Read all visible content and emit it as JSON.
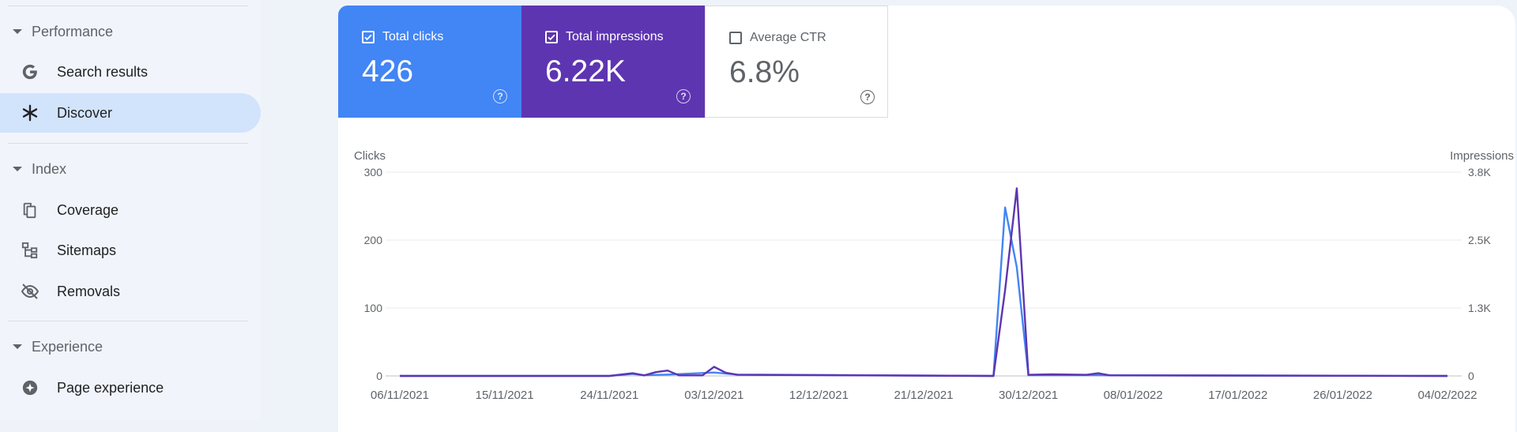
{
  "sidebar": {
    "sections": [
      {
        "title": "Performance",
        "items": [
          {
            "label": "Search results",
            "icon": "google-g-icon"
          },
          {
            "label": "Discover",
            "icon": "asterisk-icon",
            "active": true
          }
        ]
      },
      {
        "title": "Index",
        "items": [
          {
            "label": "Coverage",
            "icon": "copy-pages-icon"
          },
          {
            "label": "Sitemaps",
            "icon": "sitemap-icon"
          },
          {
            "label": "Removals",
            "icon": "eye-off-icon"
          }
        ]
      },
      {
        "title": "Experience",
        "items": [
          {
            "label": "Page experience",
            "icon": "plus-circle-icon"
          }
        ]
      }
    ]
  },
  "metrics": {
    "clicks": {
      "label": "Total clicks",
      "value": "426",
      "checked": true,
      "color": "#4285f4"
    },
    "impressions": {
      "label": "Total impressions",
      "value": "6.22K",
      "checked": true,
      "color": "#5e35b1"
    },
    "ctr": {
      "label": "Average CTR",
      "value": "6.8%",
      "checked": false
    }
  },
  "chart_data": {
    "type": "line",
    "left_axis_label": "Clicks",
    "right_axis_label": "Impressions",
    "left_ticks": [
      "0",
      "100",
      "200",
      "300"
    ],
    "right_ticks": [
      "0",
      "1.3K",
      "2.5K",
      "3.8K"
    ],
    "ylim_left": [
      0,
      300
    ],
    "ylim_right": [
      0,
      3800
    ],
    "x_tick_labels": [
      "06/11/2021",
      "15/11/2021",
      "24/11/2021",
      "03/12/2021",
      "12/12/2021",
      "21/12/2021",
      "30/12/2021",
      "08/01/2022",
      "17/01/2022",
      "26/01/2022",
      "04/02/2022"
    ],
    "series": [
      {
        "name": "Total clicks",
        "color": "#4285f4",
        "points": [
          [
            "06/11/2021",
            0
          ],
          [
            "24/11/2021",
            0
          ],
          [
            "26/11/2021",
            3
          ],
          [
            "27/11/2021",
            1
          ],
          [
            "29/11/2021",
            2
          ],
          [
            "03/12/2021",
            5
          ],
          [
            "05/12/2021",
            2
          ],
          [
            "27/12/2021",
            0
          ],
          [
            "28/12/2021",
            248
          ],
          [
            "29/12/2021",
            160
          ],
          [
            "30/12/2021",
            1
          ],
          [
            "02/01/2022",
            1
          ],
          [
            "05/01/2022",
            1
          ],
          [
            "04/02/2022",
            0
          ]
        ]
      },
      {
        "name": "Total impressions",
        "color": "#5e35b1",
        "points": [
          [
            "06/11/2021",
            0
          ],
          [
            "24/11/2021",
            0
          ],
          [
            "26/11/2021",
            50
          ],
          [
            "27/11/2021",
            10
          ],
          [
            "28/11/2021",
            70
          ],
          [
            "29/11/2021",
            100
          ],
          [
            "30/11/2021",
            10
          ],
          [
            "02/12/2021",
            10
          ],
          [
            "03/12/2021",
            170
          ],
          [
            "04/12/2021",
            60
          ],
          [
            "05/12/2021",
            20
          ],
          [
            "27/12/2021",
            0
          ],
          [
            "28/12/2021",
            1600
          ],
          [
            "29/12/2021",
            3500
          ],
          [
            "30/12/2021",
            20
          ],
          [
            "01/01/2022",
            30
          ],
          [
            "04/01/2022",
            20
          ],
          [
            "05/01/2022",
            50
          ],
          [
            "06/01/2022",
            10
          ],
          [
            "04/02/2022",
            0
          ]
        ]
      }
    ]
  }
}
